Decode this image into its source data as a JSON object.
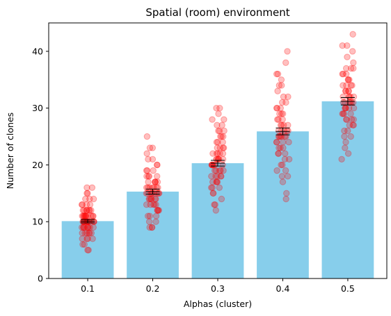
{
  "chart_data": {
    "type": "bar",
    "title": "Spatial (room) environment",
    "xlabel": "Alphas (cluster)",
    "ylabel": "Number of clones",
    "categories": [
      "0.1",
      "0.2",
      "0.3",
      "0.4",
      "0.5"
    ],
    "values": [
      10.1,
      15.3,
      20.3,
      25.9,
      31.2
    ],
    "errors": [
      0.3,
      0.45,
      0.5,
      0.6,
      0.65
    ],
    "ylim": [
      0,
      45
    ],
    "yticks": [
      0,
      10,
      20,
      30,
      40
    ],
    "grid": false,
    "bar_color": "#87CEEB",
    "point_color": "#FF0000",
    "points": [
      [
        5,
        5,
        6,
        6,
        7,
        7,
        7,
        7,
        8,
        8,
        8,
        8,
        8,
        8,
        9,
        9,
        9,
        9,
        9,
        9,
        9,
        9,
        9,
        10,
        10,
        10,
        10,
        10,
        10,
        10,
        10,
        10,
        10,
        10,
        10,
        10,
        10,
        11,
        11,
        11,
        11,
        11,
        11,
        11,
        11,
        11,
        11,
        11,
        12,
        12,
        12,
        12,
        12,
        12,
        12,
        13,
        13,
        13,
        13,
        14,
        14,
        14,
        15,
        15,
        16,
        16
      ],
      [
        9,
        9,
        9,
        10,
        10,
        11,
        11,
        11,
        12,
        12,
        12,
        12,
        13,
        13,
        13,
        13,
        13,
        14,
        14,
        14,
        14,
        14,
        14,
        15,
        15,
        15,
        15,
        15,
        15,
        15,
        15,
        15,
        16,
        16,
        16,
        16,
        16,
        16,
        16,
        17,
        17,
        17,
        17,
        17,
        18,
        18,
        18,
        18,
        19,
        19,
        19,
        20,
        20,
        21,
        21,
        22,
        23,
        23,
        25
      ],
      [
        12,
        13,
        13,
        14,
        15,
        15,
        16,
        16,
        16,
        17,
        17,
        17,
        17,
        18,
        18,
        18,
        18,
        18,
        19,
        19,
        19,
        19,
        19,
        20,
        20,
        20,
        20,
        20,
        20,
        20,
        21,
        21,
        21,
        21,
        21,
        21,
        22,
        22,
        22,
        22,
        22,
        23,
        23,
        23,
        23,
        24,
        24,
        24,
        25,
        25,
        25,
        26,
        26,
        26,
        27,
        27,
        28,
        28,
        29,
        30,
        30
      ],
      [
        14,
        15,
        17,
        18,
        18,
        19,
        19,
        20,
        20,
        21,
        21,
        22,
        22,
        22,
        23,
        23,
        23,
        24,
        24,
        24,
        24,
        25,
        25,
        25,
        25,
        25,
        25,
        26,
        26,
        26,
        26,
        26,
        27,
        27,
        27,
        27,
        28,
        28,
        28,
        29,
        29,
        29,
        30,
        30,
        30,
        31,
        31,
        32,
        32,
        33,
        34,
        34,
        35,
        36,
        36,
        38,
        40
      ],
      [
        21,
        22,
        23,
        24,
        25,
        25,
        26,
        26,
        27,
        27,
        27,
        28,
        28,
        28,
        28,
        29,
        29,
        29,
        29,
        30,
        30,
        30,
        30,
        30,
        31,
        31,
        31,
        31,
        31,
        31,
        32,
        32,
        32,
        32,
        32,
        33,
        33,
        33,
        33,
        34,
        34,
        34,
        34,
        35,
        35,
        35,
        36,
        36,
        36,
        37,
        37,
        37,
        38,
        39,
        40,
        41,
        41,
        43
      ]
    ]
  }
}
